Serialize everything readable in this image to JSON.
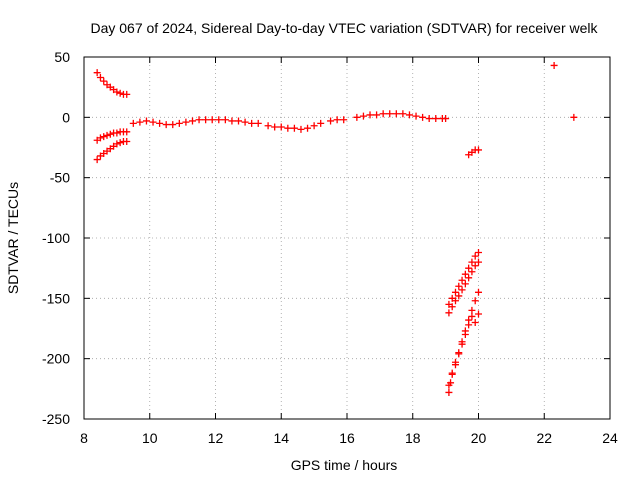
{
  "chart_data": {
    "type": "scatter",
    "title": "Day 067 of 2024, Sidereal Day-to-day VTEC variation (SDTVAR) for receiver welk",
    "xlabel": "GPS time / hours",
    "ylabel": "SDTVAR / TECUs",
    "xlim": [
      8,
      24
    ],
    "ylim": [
      -250,
      50
    ],
    "xticks": [
      8,
      10,
      12,
      14,
      16,
      18,
      20,
      22,
      24
    ],
    "yticks": [
      -250,
      -200,
      -150,
      -100,
      -50,
      0,
      50
    ],
    "xtick_labels": [
      "8",
      "10",
      "12",
      "14",
      "16",
      "18",
      "20",
      "22",
      "24"
    ],
    "ytick_labels": [
      "-250",
      "-200",
      "-150",
      "-100",
      "-50",
      "0",
      "50"
    ],
    "grid": true,
    "marker": "+",
    "color": "#ff0000",
    "series": [
      {
        "points": [
          [
            8.4,
            37
          ],
          [
            8.5,
            33
          ],
          [
            8.6,
            30
          ],
          [
            8.7,
            27
          ],
          [
            8.8,
            25
          ],
          [
            8.9,
            23
          ],
          [
            9.0,
            21
          ],
          [
            9.1,
            20
          ],
          [
            9.2,
            19
          ],
          [
            9.3,
            19
          ],
          [
            8.4,
            -19
          ],
          [
            8.5,
            -17
          ],
          [
            8.6,
            -16
          ],
          [
            8.7,
            -15
          ],
          [
            8.8,
            -14
          ],
          [
            8.9,
            -13
          ],
          [
            9.0,
            -13
          ],
          [
            9.1,
            -12
          ],
          [
            9.2,
            -12
          ],
          [
            9.3,
            -12
          ],
          [
            8.4,
            -35
          ],
          [
            8.5,
            -32
          ],
          [
            8.6,
            -30
          ],
          [
            8.7,
            -28
          ],
          [
            8.8,
            -26
          ],
          [
            8.9,
            -24
          ],
          [
            9.0,
            -22
          ],
          [
            9.1,
            -21
          ],
          [
            9.2,
            -20
          ],
          [
            9.3,
            -20
          ],
          [
            9.5,
            -5
          ],
          [
            9.7,
            -4
          ],
          [
            9.9,
            -3
          ],
          [
            10.1,
            -4
          ],
          [
            10.3,
            -5
          ],
          [
            10.5,
            -6
          ],
          [
            10.7,
            -6
          ],
          [
            10.9,
            -5
          ],
          [
            11.1,
            -4
          ],
          [
            11.3,
            -3
          ],
          [
            11.5,
            -2
          ],
          [
            11.7,
            -2
          ],
          [
            11.9,
            -2
          ],
          [
            12.1,
            -2
          ],
          [
            12.3,
            -2
          ],
          [
            12.5,
            -3
          ],
          [
            12.7,
            -3
          ],
          [
            12.9,
            -4
          ],
          [
            13.1,
            -5
          ],
          [
            13.3,
            -5
          ],
          [
            13.6,
            -7
          ],
          [
            13.8,
            -8
          ],
          [
            14.0,
            -8
          ],
          [
            14.2,
            -9
          ],
          [
            14.4,
            -9
          ],
          [
            14.6,
            -10
          ],
          [
            14.8,
            -9
          ],
          [
            15.0,
            -7
          ],
          [
            15.2,
            -5
          ],
          [
            15.5,
            -3
          ],
          [
            15.7,
            -2
          ],
          [
            15.9,
            -2
          ],
          [
            16.3,
            0
          ],
          [
            16.5,
            1
          ],
          [
            16.7,
            2
          ],
          [
            16.9,
            2
          ],
          [
            17.1,
            3
          ],
          [
            17.3,
            3
          ],
          [
            17.5,
            3
          ],
          [
            17.7,
            3
          ],
          [
            17.9,
            2
          ],
          [
            18.1,
            1
          ],
          [
            18.3,
            0
          ],
          [
            18.5,
            -1
          ],
          [
            18.7,
            -1
          ],
          [
            18.9,
            -1
          ],
          [
            19.0,
            -1
          ],
          [
            19.7,
            -31
          ],
          [
            19.8,
            -29
          ],
          [
            19.9,
            -27
          ],
          [
            20.0,
            -27
          ],
          [
            19.1,
            -155
          ],
          [
            19.2,
            -150
          ],
          [
            19.3,
            -145
          ],
          [
            19.4,
            -140
          ],
          [
            19.5,
            -135
          ],
          [
            19.6,
            -130
          ],
          [
            19.7,
            -125
          ],
          [
            19.8,
            -120
          ],
          [
            19.9,
            -115
          ],
          [
            20.0,
            -112
          ],
          [
            19.1,
            -162
          ],
          [
            19.2,
            -157
          ],
          [
            19.3,
            -152
          ],
          [
            19.4,
            -148
          ],
          [
            19.5,
            -143
          ],
          [
            19.6,
            -138
          ],
          [
            19.7,
            -133
          ],
          [
            19.8,
            -128
          ],
          [
            19.9,
            -123
          ],
          [
            20.0,
            -120
          ],
          [
            19.1,
            -228
          ],
          [
            19.15,
            -220
          ],
          [
            19.2,
            -212
          ],
          [
            19.3,
            -203
          ],
          [
            19.4,
            -195
          ],
          [
            19.5,
            -186
          ],
          [
            19.6,
            -177
          ],
          [
            19.7,
            -168
          ],
          [
            19.8,
            -160
          ],
          [
            19.9,
            -152
          ],
          [
            20.0,
            -145
          ],
          [
            19.1,
            -222
          ],
          [
            19.2,
            -213
          ],
          [
            19.3,
            -205
          ],
          [
            19.4,
            -196
          ],
          [
            19.5,
            -188
          ],
          [
            19.6,
            -180
          ],
          [
            19.7,
            -172
          ],
          [
            19.8,
            -165
          ],
          [
            19.9,
            -170
          ],
          [
            20.0,
            -163
          ],
          [
            22.3,
            43
          ],
          [
            22.9,
            0
          ]
        ]
      }
    ]
  }
}
